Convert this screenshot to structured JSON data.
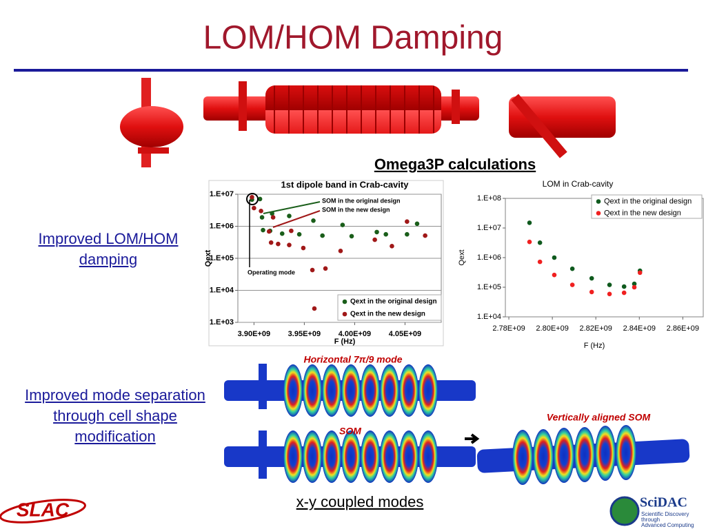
{
  "title": "LOM/HOM Damping",
  "subheading": "Omega3P calculations",
  "left_texts": [
    "Improved LOM/HOM damping",
    "Improved mode separation through cell shape modification"
  ],
  "field_captions": [
    "Horizontal 7π/9 mode",
    "SOM",
    "Vertically aligned SOM"
  ],
  "bottom_caption": "x-y coupled modes",
  "logos": {
    "slac": "SLAC",
    "scidac": "SciDAC",
    "scidac_sub": [
      "Scientific Discovery",
      "through",
      "Advanced Computing"
    ]
  },
  "chart_data": [
    {
      "type": "scatter",
      "title": "1st dipole band in Crab-cavity",
      "xlabel": "F (Hz)",
      "ylabel": "Qext",
      "yscale": "log",
      "grid": true,
      "legend": "lower right",
      "xlim": [
        3884000000.0,
        4086000000.0
      ],
      "xticks": [
        {
          "value": 3900000000.0,
          "label": "3.90E+09"
        },
        {
          "value": 3950000000.0,
          "label": "3.95E+09"
        },
        {
          "value": 4000000000.0,
          "label": "4.00E+09"
        },
        {
          "value": 4050000000.0,
          "label": "4.05E+09"
        }
      ],
      "ylim": [
        1000,
        10000000
      ],
      "yticks": [
        {
          "value": 1000,
          "label": "1.E+03"
        },
        {
          "value": 10000,
          "label": "1.E+04"
        },
        {
          "value": 100000,
          "label": "1.E+05"
        },
        {
          "value": 1000000,
          "label": "1.E+06"
        },
        {
          "value": 10000000,
          "label": "1.E+07"
        }
      ],
      "annotations": [
        "SOM in the original design",
        "SOM in the new design",
        "Operating mode"
      ],
      "series": [
        {
          "name": "Qext in the original design",
          "color": "#1a5e1a",
          "x": [
            3898000000.0,
            3906000000.0,
            3908000000.0,
            3918000000.0,
            3909000000.0,
            3916000000.0,
            3928000000.0,
            3935000000.0,
            3945000000.0,
            3959000000.0,
            3968000000.0,
            3988000000.0,
            3997000000.0,
            4022000000.0,
            4031000000.0,
            4052000000.0,
            4062000000.0
          ],
          "values": [
            6800000,
            7100000,
            1900000,
            2500000,
            760000,
            720000,
            590000,
            2100000,
            560000,
            1500000,
            510000,
            1100000,
            490000,
            660000,
            560000,
            560000,
            1200000
          ]
        },
        {
          "name": "Qext in the new design",
          "color": "#a01818",
          "x": [
            3898000000.0,
            3900000000.0,
            3907000000.0,
            3915000000.0,
            3919000000.0,
            3917000000.0,
            3924000000.0,
            3937000000.0,
            3935000000.0,
            3949000000.0,
            3958000000.0,
            3971000000.0,
            3960000000.0,
            3986000000.0,
            4020000000.0,
            4037000000.0,
            4052000000.0,
            4070000000.0
          ],
          "values": [
            8100000,
            3700000,
            3000000,
            690000,
            1900000,
            310000,
            280000,
            720000,
            260000,
            210000,
            43000,
            48000,
            2700,
            170000,
            380000,
            240000,
            1400000,
            510000
          ]
        }
      ]
    },
    {
      "type": "scatter",
      "title": "LOM in Crab-cavity",
      "xlabel": "F (Hz)",
      "ylabel": "Qext",
      "yscale": "log",
      "grid": false,
      "legend": "upper right",
      "xlim": [
        2778400000.0,
        2869400000.0
      ],
      "xticks": [
        {
          "value": 2780000000.0,
          "label": "2.78E+09"
        },
        {
          "value": 2800000000.0,
          "label": "2.80E+09"
        },
        {
          "value": 2820000000.0,
          "label": "2.82E+09"
        },
        {
          "value": 2840000000.0,
          "label": "2.84E+09"
        },
        {
          "value": 2860000000.0,
          "label": "2.86E+09"
        }
      ],
      "ylim": [
        10000,
        100000000
      ],
      "yticks": [
        {
          "value": 10000,
          "label": "1.E+04"
        },
        {
          "value": 100000,
          "label": "1.E+05"
        },
        {
          "value": 1000000,
          "label": "1.E+06"
        },
        {
          "value": 10000000,
          "label": "1.E+07"
        },
        {
          "value": 100000000,
          "label": "1.E+08"
        }
      ],
      "series": [
        {
          "name": "Qext in the original design",
          "color": "#0f5a1e",
          "x": [
            2789500000.0,
            2794300000.0,
            2800900000.0,
            2809200000.0,
            2818100000.0,
            2826300000.0,
            2833000000.0,
            2837700000.0,
            2840300000.0
          ],
          "values": [
            15000000,
            3200000,
            1000000,
            420000,
            200000,
            120000,
            105000,
            130000,
            360000
          ]
        },
        {
          "name": "Qext in the new design",
          "color": "#f02020",
          "x": [
            2789500000.0,
            2794300000.0,
            2800900000.0,
            2809200000.0,
            2818100000.0,
            2826300000.0,
            2833000000.0,
            2837700000.0,
            2840300000.0
          ],
          "values": [
            3400000,
            720000,
            260000,
            120000,
            69000,
            59000,
            65000,
            100000,
            310000
          ]
        }
      ]
    }
  ]
}
